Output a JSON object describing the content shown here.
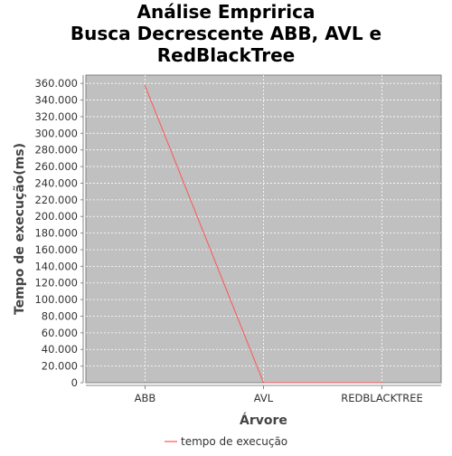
{
  "chart_data": {
    "type": "line",
    "title": [
      "Análise Empririca",
      "Busca Decrescente ABB, AVL e",
      "RedBlackTree"
    ],
    "xlabel": "Árvore",
    "ylabel": "Tempo de execução(ms)",
    "categories": [
      "ABB",
      "AVL",
      "REDBLACKTREE"
    ],
    "series": [
      {
        "name": "tempo de execução",
        "values": [
          357000,
          0,
          0
        ],
        "color": "#ff5555"
      }
    ],
    "ylim": [
      0,
      370000
    ],
    "yticks": [
      0,
      20000,
      40000,
      60000,
      80000,
      100000,
      120000,
      140000,
      160000,
      180000,
      200000,
      220000,
      240000,
      260000,
      280000,
      300000,
      320000,
      340000,
      360000
    ],
    "ytick_labels": [
      "0",
      "20.000",
      "40.000",
      "60.000",
      "80.000",
      "100.000",
      "120.000",
      "140.000",
      "160.000",
      "180.000",
      "200.000",
      "220.000",
      "240.000",
      "260.000",
      "280.000",
      "300.000",
      "320.000",
      "340.000",
      "360.000"
    ],
    "grid": true,
    "legend": "bottom-center",
    "plot_background": "#c0c0c0",
    "grid_color": "#ffffff"
  }
}
